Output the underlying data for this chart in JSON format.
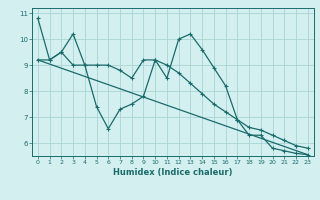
{
  "xlabel": "Humidex (Indice chaleur)",
  "bg_color": "#d4efef",
  "grid_color": "#a8d4d4",
  "line_color": "#1a6b6b",
  "xlim": [
    -0.5,
    23.5
  ],
  "ylim": [
    5.5,
    11.2
  ],
  "yticks": [
    6,
    7,
    8,
    9,
    10,
    11
  ],
  "xticks": [
    0,
    1,
    2,
    3,
    4,
    5,
    6,
    7,
    8,
    9,
    10,
    11,
    12,
    13,
    14,
    15,
    16,
    17,
    18,
    19,
    20,
    21,
    22,
    23
  ],
  "series1_x": [
    0,
    1,
    2,
    3,
    4,
    5,
    6,
    7,
    8,
    9,
    10,
    11,
    12,
    13,
    14,
    15,
    16,
    17,
    18,
    19,
    20,
    21,
    22,
    23
  ],
  "series1_y": [
    10.8,
    9.2,
    9.5,
    10.2,
    9.0,
    7.4,
    6.55,
    7.3,
    7.5,
    7.8,
    9.2,
    8.5,
    10.0,
    10.2,
    9.6,
    8.9,
    8.2,
    6.9,
    6.3,
    6.3,
    5.8,
    5.7,
    5.6,
    5.55
  ],
  "series2_x": [
    0,
    1,
    2,
    3,
    4,
    5,
    6,
    7,
    8,
    9,
    10,
    11,
    12,
    13,
    14,
    15,
    16,
    17,
    18,
    19,
    20,
    21,
    22,
    23
  ],
  "series2_y": [
    9.2,
    9.2,
    9.5,
    9.0,
    9.0,
    9.0,
    9.0,
    8.8,
    8.5,
    9.2,
    9.2,
    9.0,
    8.7,
    8.3,
    7.9,
    7.5,
    7.2,
    6.9,
    6.6,
    6.5,
    6.3,
    6.1,
    5.9,
    5.8
  ],
  "series3_x": [
    0,
    23
  ],
  "series3_y": [
    9.2,
    5.55
  ]
}
